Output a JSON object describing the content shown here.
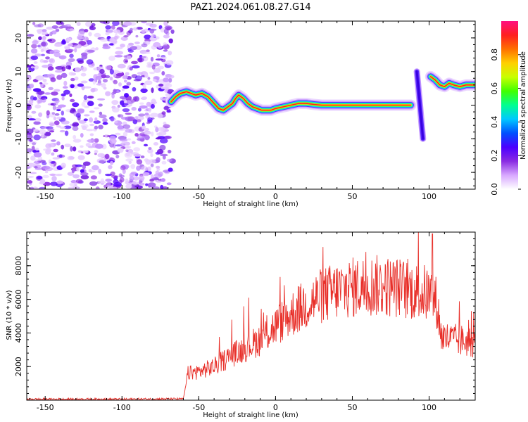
{
  "title": "PAZ1.2024.061.08.27.G14",
  "chart_data": [
    {
      "type": "heatmap",
      "title": "PAZ1.2024.061.08.27.G14",
      "xlabel": "Height of straight line (km)",
      "ylabel": "Frequency (Hz)",
      "xlim": [
        -162,
        130
      ],
      "ylim": [
        -25,
        25
      ],
      "xticks": [
        -150,
        -100,
        -50,
        0,
        50,
        100
      ],
      "yticks": [
        -20,
        -10,
        0,
        10,
        20
      ],
      "colorbar": {
        "label": "Normalized spectral amplitude",
        "range": [
          0.0,
          1.0
        ],
        "ticks": [
          0.0,
          0.2,
          0.4,
          0.6,
          0.8
        ],
        "colors": [
          "#ffffff",
          "#d8a8ff",
          "#8a2be2",
          "#4b00ff",
          "#0050ff",
          "#00c8ff",
          "#00ff90",
          "#40ff00",
          "#c8ff00",
          "#ffd000",
          "#ff7000",
          "#ff2020",
          "#ff1080"
        ]
      },
      "noise_region": {
        "x": [
          -162,
          -67
        ],
        "y": [
          -25,
          25
        ]
      },
      "track": [
        [
          -68,
          1.0
        ],
        [
          -65,
          2.5
        ],
        [
          -62,
          3.5
        ],
        [
          -58,
          4.0
        ],
        [
          -55,
          3.5
        ],
        [
          -52,
          3.0
        ],
        [
          -48,
          3.5
        ],
        [
          -44,
          2.5
        ],
        [
          -40,
          0.5
        ],
        [
          -37,
          -1.0
        ],
        [
          -34,
          -1.5
        ],
        [
          -31,
          -0.5
        ],
        [
          -28,
          0.5
        ],
        [
          -26,
          2.0
        ],
        [
          -24,
          3.0
        ],
        [
          -21,
          2.0
        ],
        [
          -18,
          0.5
        ],
        [
          -15,
          -0.5
        ],
        [
          -12,
          -1.0
        ],
        [
          -9,
          -1.5
        ],
        [
          -6,
          -1.5
        ],
        [
          -3,
          -1.5
        ],
        [
          0,
          -1.0
        ],
        [
          5,
          -0.5
        ],
        [
          10,
          0.0
        ],
        [
          15,
          0.5
        ],
        [
          20,
          0.5
        ],
        [
          25,
          0.2
        ],
        [
          30,
          0.0
        ],
        [
          40,
          0.0
        ],
        [
          50,
          0.0
        ],
        [
          60,
          0.0
        ],
        [
          70,
          0.0
        ],
        [
          80,
          0.0
        ],
        [
          88,
          0.0
        ]
      ],
      "track_jump": [
        [
          92,
          10
        ],
        [
          93,
          5
        ],
        [
          94,
          0
        ],
        [
          95,
          -5
        ],
        [
          96,
          -10
        ]
      ],
      "track_right": [
        [
          101,
          8.5
        ],
        [
          104,
          7.5
        ],
        [
          107,
          6.0
        ],
        [
          110,
          5.5
        ],
        [
          113,
          6.5
        ],
        [
          116,
          6.0
        ],
        [
          120,
          5.5
        ],
        [
          124,
          6.0
        ],
        [
          128,
          6.0
        ],
        [
          130,
          6.0
        ]
      ]
    },
    {
      "type": "line",
      "xlabel": "Height of straight line (km)",
      "ylabel": "SNR (10 * v/v)",
      "xlim": [
        -162,
        130
      ],
      "ylim": [
        0,
        10000
      ],
      "xticks": [
        -150,
        -100,
        -50,
        0,
        50,
        100
      ],
      "yticks": [
        2000,
        4000,
        6000,
        8000
      ],
      "color": "#e8302a",
      "envelope": [
        [
          -162,
          60
        ],
        [
          -100,
          60
        ],
        [
          -60,
          80
        ],
        [
          -57,
          1600
        ],
        [
          -50,
          1700
        ],
        [
          -40,
          2000
        ],
        [
          -30,
          2600
        ],
        [
          -20,
          3100
        ],
        [
          -10,
          3600
        ],
        [
          0,
          4400
        ],
        [
          10,
          5100
        ],
        [
          20,
          5700
        ],
        [
          30,
          6200
        ],
        [
          40,
          6500
        ],
        [
          50,
          6700
        ],
        [
          60,
          6800
        ],
        [
          70,
          6800
        ],
        [
          80,
          6700
        ],
        [
          90,
          6500
        ],
        [
          100,
          6300
        ],
        [
          105,
          5800
        ],
        [
          108,
          3800
        ],
        [
          115,
          3600
        ],
        [
          125,
          3500
        ],
        [
          130,
          3400
        ]
      ],
      "spike_max": [
        102,
        9900
      ]
    }
  ]
}
